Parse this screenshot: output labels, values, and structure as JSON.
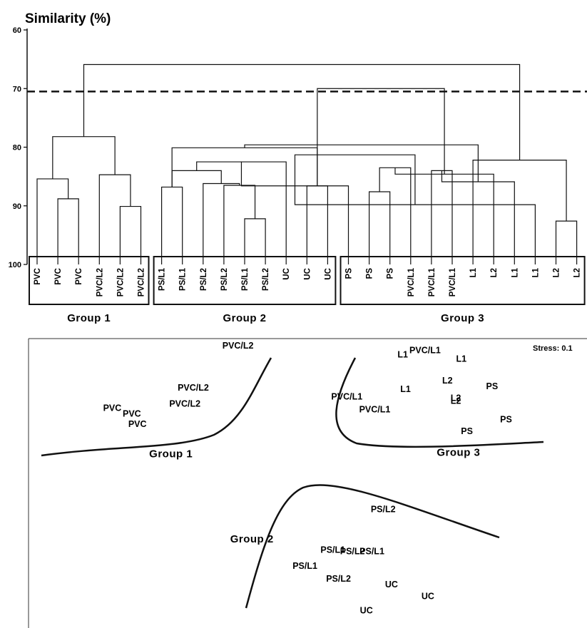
{
  "chart_data": [
    {
      "type": "dendrogram",
      "ylabel": "Similarity (%)",
      "ylim": [
        60,
        100
      ],
      "y_ticks": [
        "60",
        "70",
        "80",
        "90",
        "100"
      ],
      "threshold": 70.5,
      "leaves": [
        "PVC",
        "PVC",
        "PVC",
        "PVC/L2",
        "PVC/L2",
        "PVC/L2",
        "PS/L1",
        "PS/L1",
        "PS/L2",
        "PS/L2",
        "PS/L1",
        "PS/L2",
        "UC",
        "UC",
        "UC",
        "PS",
        "PS",
        "PS",
        "PVC/L1",
        "PVC/L1",
        "PVC/L1",
        "L1",
        "L2",
        "L1",
        "L1",
        "L2",
        "L2"
      ],
      "merges": [
        [
          1,
          2,
          88.8
        ],
        [
          0,
          27,
          85.4
        ],
        [
          4,
          5,
          90.1
        ],
        [
          3,
          29,
          84.7
        ],
        [
          28,
          30,
          78.2
        ],
        [
          10,
          11,
          92.2
        ],
        [
          9,
          32,
          86.5
        ],
        [
          8,
          33,
          86.2
        ],
        [
          6,
          7,
          86.8
        ],
        [
          35,
          34,
          84.0
        ],
        [
          13,
          14,
          86.6
        ],
        [
          12,
          36,
          82.5
        ],
        [
          35,
          37,
          80.1
        ],
        [
          16,
          17,
          87.6
        ],
        [
          15,
          38,
          86.6
        ],
        [
          19,
          20,
          84.0
        ],
        [
          18,
          40,
          83.5
        ],
        [
          25,
          26,
          92.6
        ],
        [
          24,
          41,
          89.8
        ],
        [
          23,
          42,
          85.9
        ],
        [
          22,
          43,
          84.6
        ],
        [
          21,
          44,
          82.2
        ],
        [
          41,
          45,
          81.3
        ],
        [
          39,
          46,
          79.6
        ],
        [
          37,
          47,
          70.0
        ],
        [
          31,
          48,
          65.9
        ]
      ],
      "groups": [
        {
          "label": "Group 1",
          "from": 0,
          "to": 5
        },
        {
          "label": "Group 2",
          "from": 6,
          "to": 14
        },
        {
          "label": "Group 3",
          "from": 15,
          "to": 26
        }
      ]
    },
    {
      "type": "scatter",
      "stress": "Stress: 0.1",
      "xlim": [
        0,
        100
      ],
      "ylim": [
        0,
        100
      ],
      "points": [
        {
          "label": "PVC/L2",
          "x": 37.5,
          "y": 96.5
        },
        {
          "label": "PVC/L2",
          "x": 29.5,
          "y": 82
        },
        {
          "label": "PVC/L2",
          "x": 28,
          "y": 76.5
        },
        {
          "label": "PVC",
          "x": 15,
          "y": 75
        },
        {
          "label": "PVC",
          "x": 18.5,
          "y": 73
        },
        {
          "label": "PVC",
          "x": 19.5,
          "y": 69.5
        },
        {
          "label": "PVC/L1",
          "x": 71,
          "y": 95
        },
        {
          "label": "L1",
          "x": 67,
          "y": 93.5
        },
        {
          "label": "L1",
          "x": 77.5,
          "y": 92
        },
        {
          "label": "L1",
          "x": 67.5,
          "y": 81.5
        },
        {
          "label": "L2",
          "x": 75,
          "y": 84.5
        },
        {
          "label": "PS",
          "x": 83,
          "y": 82.5
        },
        {
          "label": "L2",
          "x": 76.5,
          "y": 78.5
        },
        {
          "label": "L2",
          "x": 76.5,
          "y": 77.5
        },
        {
          "label": "PVC/L1",
          "x": 57,
          "y": 79
        },
        {
          "label": "PVC/L1",
          "x": 62,
          "y": 74.5
        },
        {
          "label": "PS",
          "x": 85.5,
          "y": 71
        },
        {
          "label": "PS",
          "x": 78.5,
          "y": 67
        },
        {
          "label": "PS/L2",
          "x": 63.5,
          "y": 40
        },
        {
          "label": "PS/L1",
          "x": 54.5,
          "y": 26
        },
        {
          "label": "PS/L2",
          "x": 58,
          "y": 25.5
        },
        {
          "label": "PS/L1",
          "x": 61.5,
          "y": 25.5
        },
        {
          "label": "PS/L1",
          "x": 49.5,
          "y": 20.5
        },
        {
          "label": "PS/L2",
          "x": 55.5,
          "y": 16
        },
        {
          "label": "UC",
          "x": 65,
          "y": 14
        },
        {
          "label": "UC",
          "x": 71.5,
          "y": 10
        },
        {
          "label": "UC",
          "x": 60.5,
          "y": 5
        }
      ],
      "group_labels": [
        {
          "label": "Group 1",
          "x": 25.5,
          "y": 59
        },
        {
          "label": "Group 3",
          "x": 77,
          "y": 59.5
        },
        {
          "label": "Group 2",
          "x": 40,
          "y": 29.5
        }
      ]
    }
  ]
}
